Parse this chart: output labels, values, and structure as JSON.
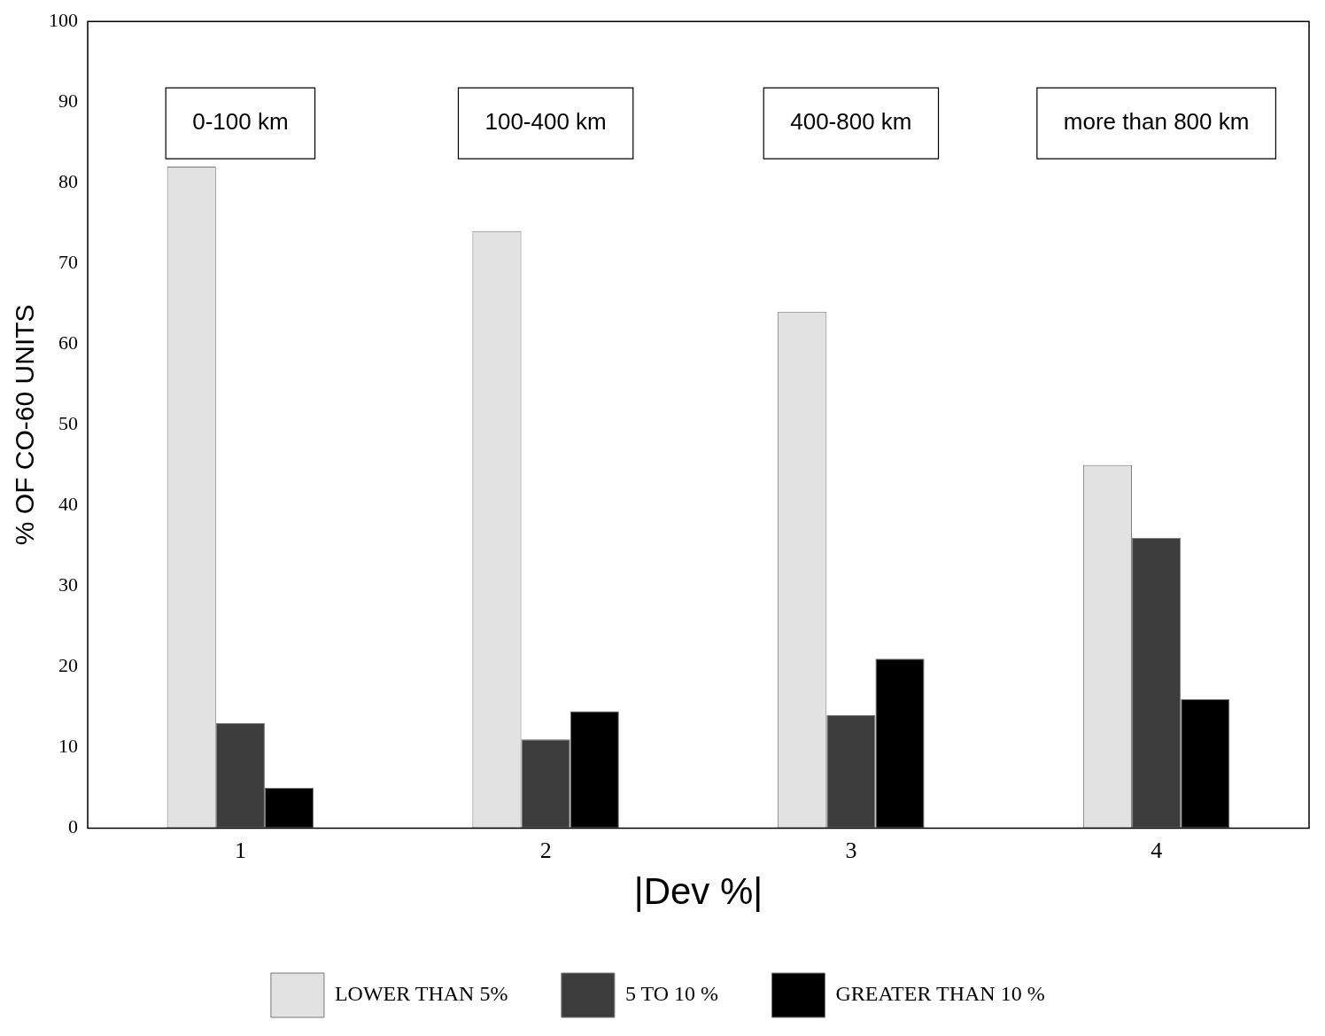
{
  "chart_data": {
    "type": "bar",
    "xlabel": "|Dev %|",
    "ylabel": "% OF CO-60 UNITS",
    "categories": [
      "1",
      "2",
      "3",
      "4"
    ],
    "series": [
      {
        "name": "LOWER THAN 5%",
        "color": "#e2e2e2",
        "values": [
          82,
          74,
          64,
          45
        ]
      },
      {
        "name": "5 TO 10 %",
        "color": "#3c3c3c",
        "values": [
          13,
          11,
          14,
          36
        ]
      },
      {
        "name": "GREATER THAN 10 %",
        "color": "#000000",
        "values": [
          5,
          14.5,
          21,
          16
        ]
      }
    ],
    "ylim": [
      0,
      100
    ],
    "yticks": [
      0,
      10,
      20,
      30,
      40,
      50,
      60,
      70,
      80,
      90,
      100
    ],
    "grid": false,
    "legend": "bottom",
    "annotations": [
      "0-100 km",
      "100-400 km",
      "400-800 km",
      "more than 800 km"
    ]
  }
}
